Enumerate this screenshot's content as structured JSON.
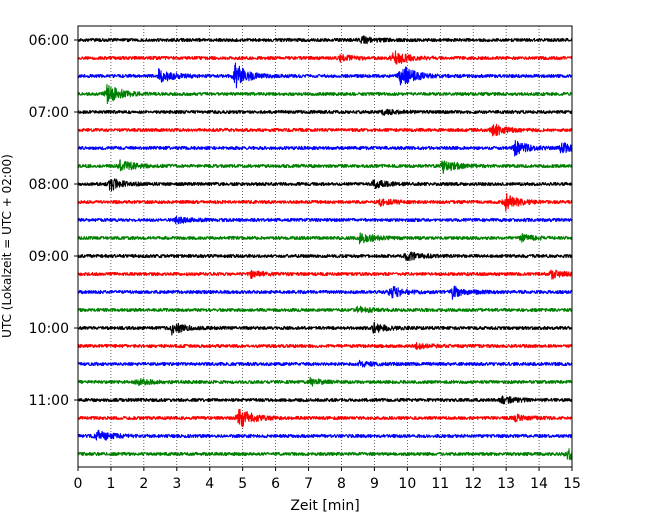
{
  "chart_data": {
    "type": "line",
    "title": "",
    "xlabel": "Zeit  [min]",
    "ylabel": "UTC (Lokalzeit = UTC + 02:00)",
    "xlim": [
      0,
      15
    ],
    "x_ticks": [
      "0",
      "1",
      "2",
      "3",
      "4",
      "5",
      "6",
      "7",
      "8",
      "9",
      "10",
      "11",
      "12",
      "13",
      "14",
      "15"
    ],
    "y_tick_labels": [
      "06:00",
      "07:00",
      "08:00",
      "09:00",
      "10:00",
      "11:00"
    ],
    "vertical_grid": true,
    "grid_style": "dotted",
    "row_colors": [
      "#000000",
      "#ff0000",
      "#0000ff",
      "#008000"
    ],
    "traces": [
      {
        "start": "06:00",
        "events": [
          {
            "t": 8.6,
            "amp": 0.25
          }
        ]
      },
      {
        "start": "06:15",
        "events": [
          {
            "t": 8.0,
            "amp": 0.2
          },
          {
            "t": 9.6,
            "amp": 0.55
          }
        ]
      },
      {
        "start": "06:30",
        "events": [
          {
            "t": 2.5,
            "amp": 0.45
          },
          {
            "t": 4.8,
            "amp": 0.8
          },
          {
            "t": 9.8,
            "amp": 0.85
          }
        ]
      },
      {
        "start": "06:45",
        "events": [
          {
            "t": 0.9,
            "amp": 0.75
          }
        ]
      },
      {
        "start": "07:00",
        "events": [
          {
            "t": 9.3,
            "amp": 0.15
          }
        ]
      },
      {
        "start": "07:15",
        "events": [
          {
            "t": 12.6,
            "amp": 0.4
          }
        ]
      },
      {
        "start": "07:30",
        "events": [
          {
            "t": 13.3,
            "amp": 0.45
          },
          {
            "t": 14.7,
            "amp": 0.3
          }
        ]
      },
      {
        "start": "07:45",
        "events": [
          {
            "t": 1.3,
            "amp": 0.4
          },
          {
            "t": 11.1,
            "amp": 0.45
          }
        ]
      },
      {
        "start": "08:00",
        "events": [
          {
            "t": 1.0,
            "amp": 0.4
          },
          {
            "t": 9.0,
            "amp": 0.25
          }
        ]
      },
      {
        "start": "08:15",
        "events": [
          {
            "t": 13.0,
            "amp": 0.55
          },
          {
            "t": 9.2,
            "amp": 0.2
          }
        ]
      },
      {
        "start": "08:30",
        "events": [
          {
            "t": 3.0,
            "amp": 0.2
          }
        ]
      },
      {
        "start": "08:45",
        "events": [
          {
            "t": 8.6,
            "amp": 0.35
          },
          {
            "t": 13.5,
            "amp": 0.2
          }
        ]
      },
      {
        "start": "09:00",
        "events": [
          {
            "t": 10.0,
            "amp": 0.3
          }
        ]
      },
      {
        "start": "09:15",
        "events": [
          {
            "t": 5.3,
            "amp": 0.2
          },
          {
            "t": 14.4,
            "amp": 0.25
          }
        ]
      },
      {
        "start": "09:30",
        "events": [
          {
            "t": 9.5,
            "amp": 0.4
          },
          {
            "t": 11.4,
            "amp": 0.4
          }
        ]
      },
      {
        "start": "09:45",
        "events": [
          {
            "t": 8.5,
            "amp": 0.2
          }
        ]
      },
      {
        "start": "10:00",
        "events": [
          {
            "t": 2.9,
            "amp": 0.35
          },
          {
            "t": 9.0,
            "amp": 0.3
          }
        ]
      },
      {
        "start": "10:15",
        "events": [
          {
            "t": 10.3,
            "amp": 0.15
          }
        ]
      },
      {
        "start": "10:30",
        "events": [
          {
            "t": 8.6,
            "amp": 0.15
          }
        ]
      },
      {
        "start": "10:45",
        "events": [
          {
            "t": 1.8,
            "amp": 0.2
          },
          {
            "t": 7.1,
            "amp": 0.2
          }
        ]
      },
      {
        "start": "11:00",
        "events": [
          {
            "t": 12.9,
            "amp": 0.25
          }
        ]
      },
      {
        "start": "11:15",
        "events": [
          {
            "t": 4.9,
            "amp": 0.7
          },
          {
            "t": 13.3,
            "amp": 0.2
          }
        ]
      },
      {
        "start": "11:30",
        "events": [
          {
            "t": 0.6,
            "amp": 0.35
          }
        ]
      },
      {
        "start": "11:45",
        "events": [
          {
            "t": 14.9,
            "amp": 0.4
          }
        ]
      }
    ]
  }
}
